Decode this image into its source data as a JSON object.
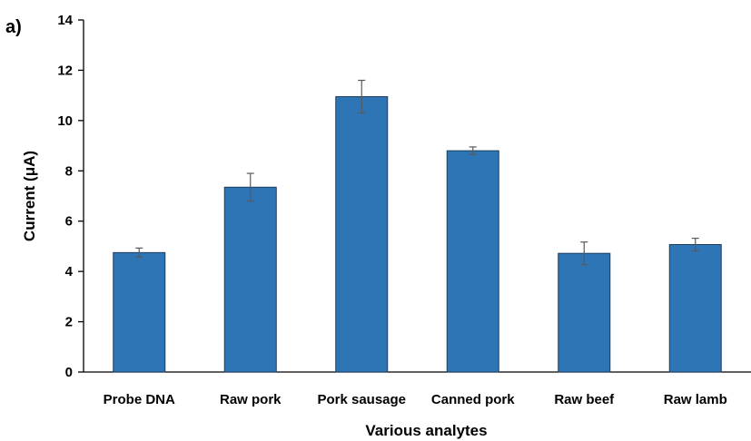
{
  "panel_label": "a)",
  "chart_data": {
    "type": "bar",
    "categories": [
      "Probe DNA",
      "Raw pork",
      "Pork sausage",
      "Canned pork",
      "Raw beef",
      "Raw lamb"
    ],
    "values": [
      4.75,
      7.35,
      10.95,
      8.8,
      4.72,
      5.07
    ],
    "errors": [
      0.18,
      0.55,
      0.65,
      0.15,
      0.45,
      0.25
    ],
    "title": "",
    "xlabel": "Various analytes",
    "ylabel": "Current (μA)",
    "ylim": [
      0,
      14
    ],
    "yticks": [
      "0",
      "2",
      "4",
      "6",
      "8",
      "10",
      "12",
      "14"
    ],
    "grid": false,
    "legend": "none",
    "bar_color": "#2e75b6",
    "bar_edge_color": "#1f3d5c",
    "error_bar_color": "#595959"
  }
}
